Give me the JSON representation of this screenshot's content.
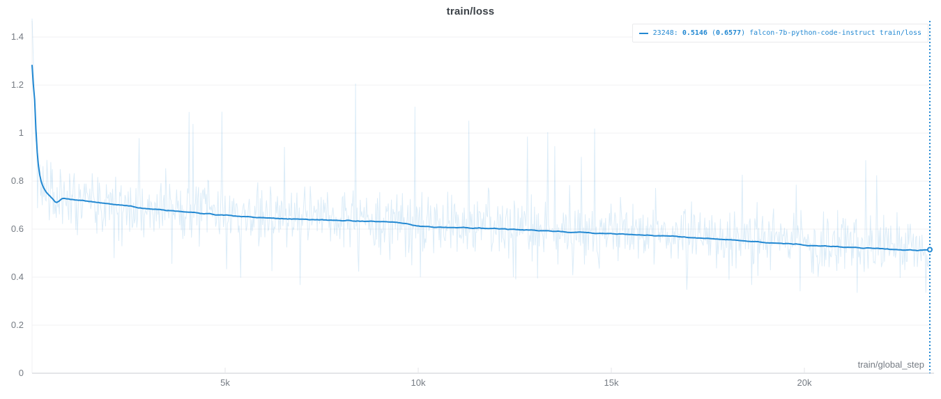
{
  "panel": {
    "title": "train/loss"
  },
  "legend": {
    "series_color": "#2288d2",
    "parts": {
      "step": "23248: ",
      "value": "0.5146",
      "open": " (",
      "raw": "0.6577",
      "close": ") ",
      "run": "falcon-7b-python-code-instruct train/loss"
    }
  },
  "axes": {
    "x_label": "train/global_step"
  },
  "colors": {
    "line": "#2288d2",
    "raw_line": "rgba(34,136,210,0.16)",
    "grid_line": "#f0f1f3",
    "axis_line": "#e4e5e8",
    "tick_text": "#757b83",
    "title_text": "#3b4147",
    "legend_border": "#e9eaec",
    "background": "#ffffff"
  },
  "chart_data": {
    "type": "line",
    "title": "train/loss",
    "xlabel": "train/global_step",
    "ylabel": "",
    "x_range": [
      0,
      23303
    ],
    "y_range": [
      0,
      1.467
    ],
    "x_tick_values": [
      5000,
      10000,
      15000,
      20000
    ],
    "x_tick_labels": [
      "5k",
      "10k",
      "15k",
      "20k"
    ],
    "y_tick_values": [
      0,
      0.2,
      0.4,
      0.6,
      0.8,
      1,
      1.2,
      1.4
    ],
    "y_tick_labels": [
      "0",
      "0.2",
      "0.4",
      "0.6",
      "0.8",
      "1",
      "1.2",
      "1.4"
    ],
    "grid": "horizontal",
    "legend_position": "top-right",
    "current_step": 23248,
    "current_smoothed": 0.5146,
    "current_raw": 0.6577,
    "series": [
      {
        "name": "falcon-7b-python-code-instruct train/loss (smoothed)",
        "type": "line",
        "jitter": 0.0035,
        "jitter_seed": 5,
        "dense_points": 700,
        "points": [
          [
            0,
            1.455
          ],
          [
            30,
            1.32
          ],
          [
            60,
            1.12
          ],
          [
            90,
            0.985
          ],
          [
            120,
            0.915
          ],
          [
            150,
            0.862
          ],
          [
            180,
            0.828
          ],
          [
            220,
            0.8
          ],
          [
            260,
            0.782
          ],
          [
            320,
            0.762
          ],
          [
            400,
            0.747
          ],
          [
            480,
            0.736
          ],
          [
            560,
            0.722
          ],
          [
            620,
            0.705
          ],
          [
            660,
            0.7
          ],
          [
            700,
            0.722
          ],
          [
            760,
            0.731
          ],
          [
            850,
            0.728
          ],
          [
            1000,
            0.724
          ],
          [
            1200,
            0.72
          ],
          [
            1500,
            0.715
          ],
          [
            1800,
            0.709
          ],
          [
            2100,
            0.704
          ],
          [
            2400,
            0.698
          ],
          [
            2700,
            0.691
          ],
          [
            3000,
            0.685
          ],
          [
            3300,
            0.681
          ],
          [
            3600,
            0.677
          ],
          [
            3900,
            0.673
          ],
          [
            4200,
            0.669
          ],
          [
            4600,
            0.663
          ],
          [
            5000,
            0.658
          ],
          [
            5500,
            0.652
          ],
          [
            6000,
            0.648
          ],
          [
            6500,
            0.644
          ],
          [
            7000,
            0.641
          ],
          [
            7600,
            0.638
          ],
          [
            8200,
            0.635
          ],
          [
            8800,
            0.632
          ],
          [
            9400,
            0.629
          ],
          [
            9700,
            0.624
          ],
          [
            9900,
            0.615
          ],
          [
            10100,
            0.611
          ],
          [
            10600,
            0.608
          ],
          [
            11200,
            0.606
          ],
          [
            11800,
            0.603
          ],
          [
            12400,
            0.599
          ],
          [
            13000,
            0.595
          ],
          [
            13600,
            0.591
          ],
          [
            14200,
            0.586
          ],
          [
            14800,
            0.582
          ],
          [
            15400,
            0.578
          ],
          [
            16000,
            0.574
          ],
          [
            16600,
            0.569
          ],
          [
            17200,
            0.564
          ],
          [
            17800,
            0.559
          ],
          [
            18400,
            0.552
          ],
          [
            19000,
            0.544
          ],
          [
            19400,
            0.541
          ],
          [
            19800,
            0.537
          ],
          [
            20200,
            0.531
          ],
          [
            20700,
            0.528
          ],
          [
            21200,
            0.525
          ],
          [
            21700,
            0.521
          ],
          [
            22200,
            0.517
          ],
          [
            22600,
            0.513
          ],
          [
            22900,
            0.511
          ],
          [
            23100,
            0.515
          ],
          [
            23248,
            0.5146
          ]
        ]
      },
      {
        "name": "falcon-7b-python-code-instruct train/loss (raw)",
        "type": "noisy-line",
        "generated_from_base": true,
        "seed": 11,
        "count": 1150,
        "offset": 0.015,
        "clamp": [
          0.335,
          1.22
        ],
        "segments": [
          {
            "until": 800,
            "amp": 0.2,
            "spike_prob": 0.025,
            "spike_min": 0.15,
            "spike_max": 0.5,
            "dip_prob": 0.05,
            "dip_min": 0.06,
            "dip_max": 0.2
          },
          {
            "until": 5000,
            "amp": 0.185,
            "spike_prob": 0.026,
            "spike_min": 0.15,
            "spike_max": 0.52,
            "dip_prob": 0.05,
            "dip_min": 0.06,
            "dip_max": 0.2
          },
          {
            "until": 15000,
            "amp": 0.18,
            "spike_prob": 0.02,
            "spike_min": 0.15,
            "spike_max": 0.52,
            "dip_prob": 0.05,
            "dip_min": 0.06,
            "dip_max": 0.2
          },
          {
            "until": 24000,
            "amp": 0.17,
            "spike_prob": 0.02,
            "spike_min": 0.12,
            "spike_max": 0.38,
            "dip_prob": 0.05,
            "dip_min": 0.06,
            "dip_max": 0.19
          }
        ]
      }
    ]
  }
}
